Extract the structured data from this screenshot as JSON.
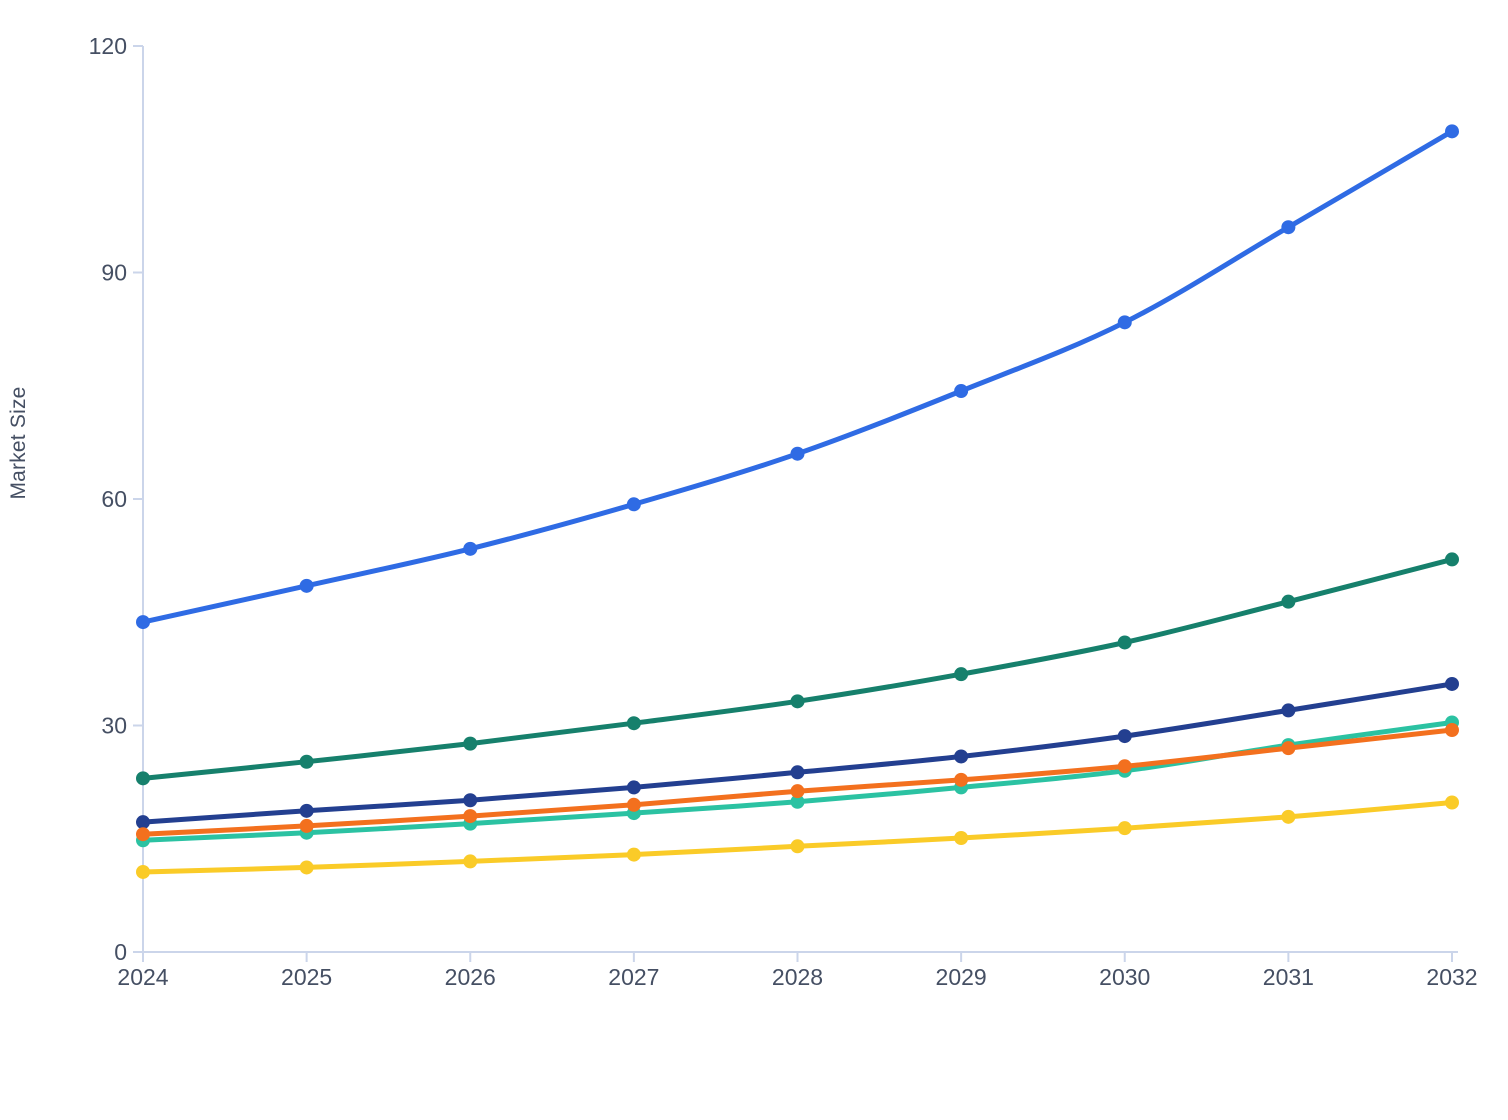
{
  "chart_data": {
    "type": "line",
    "title": "",
    "xlabel": "",
    "ylabel": "Market Size",
    "x": [
      "2024",
      "2025",
      "2026",
      "2027",
      "2028",
      "2029",
      "2030",
      "2031",
      "2032"
    ],
    "series": [
      {
        "name": "blue",
        "color": "#2F6BE4",
        "values": [
          43.7,
          48.5,
          53.4,
          59.3,
          66.0,
          74.3,
          83.4,
          96.0,
          108.7
        ]
      },
      {
        "name": "dark-green",
        "color": "#16806C",
        "values": [
          23.0,
          25.2,
          27.6,
          30.3,
          33.2,
          36.8,
          41.0,
          46.4,
          52.0
        ]
      },
      {
        "name": "navy",
        "color": "#233F90",
        "values": [
          17.2,
          18.7,
          20.1,
          21.8,
          23.8,
          25.9,
          28.6,
          32.0,
          35.5
        ]
      },
      {
        "name": "teal",
        "color": "#2BC2A2",
        "values": [
          14.8,
          15.8,
          17.0,
          18.4,
          19.9,
          21.8,
          24.0,
          27.4,
          30.4
        ]
      },
      {
        "name": "orange",
        "color": "#F3701E",
        "values": [
          15.6,
          16.7,
          18.0,
          19.5,
          21.3,
          22.8,
          24.6,
          27.0,
          29.4
        ]
      },
      {
        "name": "yellow",
        "color": "#FACB28",
        "values": [
          10.6,
          11.2,
          12.0,
          12.9,
          14.0,
          15.1,
          16.4,
          17.9,
          19.8
        ]
      }
    ],
    "ylim": [
      0,
      120
    ],
    "yticks": [
      "0",
      "30",
      "60",
      "90",
      "120"
    ],
    "grid": false,
    "legend": "none",
    "marker": "circle",
    "line_style": "smooth"
  },
  "style": {
    "axis_color": "#CBD5EA",
    "tick_label_color": "#454F63",
    "background": "#FFFFFF"
  }
}
